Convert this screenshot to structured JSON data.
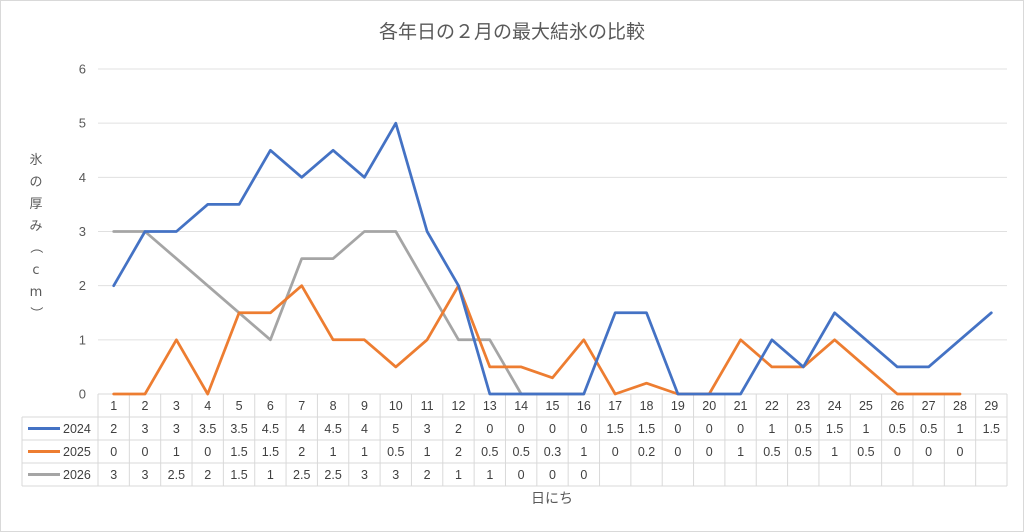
{
  "chart_data": {
    "type": "line",
    "title": "各年日の２月の最大結氷の比較",
    "xlabel": "日にち",
    "ylabel": "氷の厚み（cm）",
    "ylim": [
      0,
      6
    ],
    "yticks": [
      "0",
      "1",
      "2",
      "3",
      "4",
      "5",
      "6"
    ],
    "grid": true,
    "legend": "data-table",
    "categories": [
      "1",
      "2",
      "3",
      "4",
      "5",
      "6",
      "7",
      "8",
      "9",
      "10",
      "11",
      "12",
      "13",
      "14",
      "15",
      "16",
      "17",
      "18",
      "19",
      "20",
      "21",
      "22",
      "23",
      "24",
      "25",
      "26",
      "27",
      "28",
      "29"
    ],
    "series": [
      {
        "name": "2024",
        "color": "#4472c4",
        "values": [
          2,
          3,
          3,
          3.5,
          3.5,
          4.5,
          4,
          4.5,
          4,
          5,
          3,
          2,
          0,
          0,
          0,
          0,
          1.5,
          1.5,
          0,
          0,
          0,
          1,
          0.5,
          1.5,
          1,
          0.5,
          0.5,
          1,
          1.5
        ]
      },
      {
        "name": "2025",
        "color": "#ed7d31",
        "values": [
          0,
          0,
          1,
          0,
          1.5,
          1.5,
          2,
          1,
          1,
          0.5,
          1,
          2,
          0.5,
          0.5,
          0.3,
          1,
          0,
          0.2,
          0,
          0,
          1,
          0.5,
          0.5,
          1,
          0.5,
          0,
          0,
          0,
          null
        ]
      },
      {
        "name": "2026",
        "color": "#a5a5a5",
        "values": [
          3,
          3,
          2.5,
          2,
          1.5,
          1,
          2.5,
          2.5,
          3,
          3,
          2,
          1,
          1,
          0,
          0,
          0,
          null,
          null,
          null,
          null,
          null,
          null,
          null,
          null,
          null,
          null,
          null,
          null,
          null
        ]
      }
    ]
  }
}
